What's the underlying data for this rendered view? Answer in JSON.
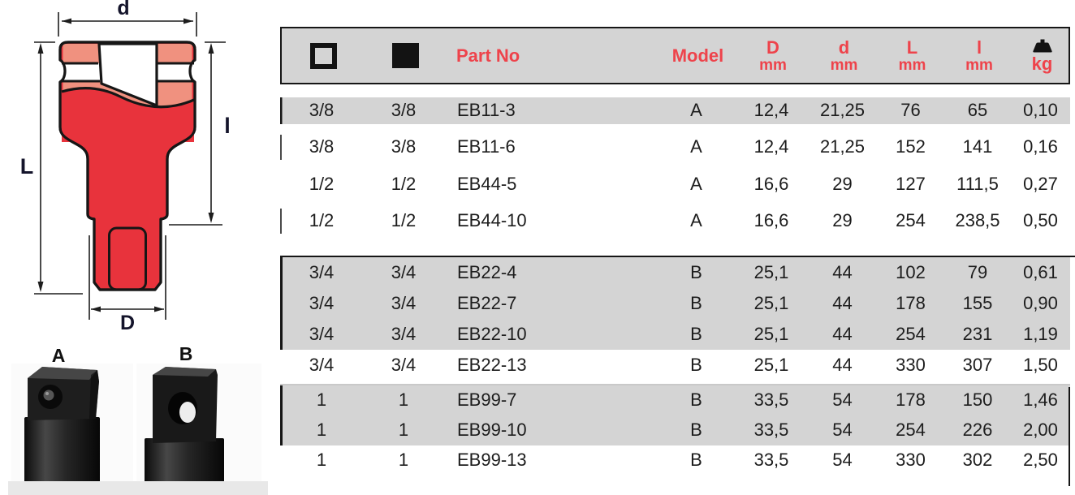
{
  "colors": {
    "accent_red": "#ee434b",
    "row_shade_gray": "#d4d4d4",
    "drawing_red": "#e8333c",
    "drawing_salmon": "#f0917f",
    "outline_black": "#161616"
  },
  "drawing": {
    "labels": {
      "d": "d",
      "l": "l",
      "L": "L",
      "D": "D"
    },
    "photos": {
      "a": "A",
      "b": "B"
    }
  },
  "table": {
    "column_ids": [
      "square_outline_size",
      "square_filled_size",
      "part_no",
      "model",
      "D_mm",
      "d_mm",
      "L_mm",
      "l_mm",
      "weight_kg"
    ],
    "header": {
      "part_no": "Part No",
      "model": "Model",
      "dims": [
        {
          "l1": "D",
          "l2": "mm"
        },
        {
          "l1": "d",
          "l2": "mm"
        },
        {
          "l1": "L",
          "l2": "mm"
        },
        {
          "l1": "l",
          "l2": "mm"
        }
      ],
      "kg_label": "kg"
    },
    "groups": [
      {
        "rows": [
          {
            "shaded": true,
            "cells": [
              "3/8",
              "3/8",
              "EB11-3",
              "A",
              "12,4",
              "21,25",
              "76",
              "65",
              "0,10"
            ]
          },
          {
            "shaded": false,
            "cells": [
              "3/8",
              "3/8",
              "EB11-6",
              "A",
              "12,4",
              "21,25",
              "152",
              "141",
              "0,16"
            ]
          },
          {
            "shaded": false,
            "cells": [
              "1/2",
              "1/2",
              "EB44-5",
              "A",
              "16,6",
              "29",
              "127",
              "111,5",
              "0,27"
            ]
          },
          {
            "shaded": false,
            "cells": [
              "1/2",
              "1/2",
              "EB44-10",
              "A",
              "16,6",
              "29",
              "254",
              "238,5",
              "0,50"
            ]
          }
        ]
      },
      {
        "rows": [
          {
            "shaded": true,
            "cells": [
              "3/4",
              "3/4",
              "EB22-4",
              "B",
              "25,1",
              "44",
              "102",
              "79",
              "0,61"
            ]
          },
          {
            "shaded": true,
            "cells": [
              "3/4",
              "3/4",
              "EB22-7",
              "B",
              "25,1",
              "44",
              "178",
              "155",
              "0,90"
            ]
          },
          {
            "shaded": true,
            "cells": [
              "3/4",
              "3/4",
              "EB22-10",
              "B",
              "25,1",
              "44",
              "254",
              "231",
              "1,19"
            ]
          },
          {
            "shaded": false,
            "cells": [
              "3/4",
              "3/4",
              "EB22-13",
              "B",
              "25,1",
              "44",
              "330",
              "307",
              "1,50"
            ]
          }
        ]
      },
      {
        "rows": [
          {
            "shaded": true,
            "cells": [
              "1",
              "1",
              "EB99-7",
              "B",
              "33,5",
              "54",
              "178",
              "150",
              "1,46"
            ]
          },
          {
            "shaded": true,
            "cells": [
              "1",
              "1",
              "EB99-10",
              "B",
              "33,5",
              "54",
              "254",
              "226",
              "2,00"
            ]
          },
          {
            "shaded": false,
            "cells": [
              "1",
              "1",
              "EB99-13",
              "B",
              "33,5",
              "54",
              "330",
              "302",
              "2,50"
            ]
          }
        ]
      }
    ]
  }
}
